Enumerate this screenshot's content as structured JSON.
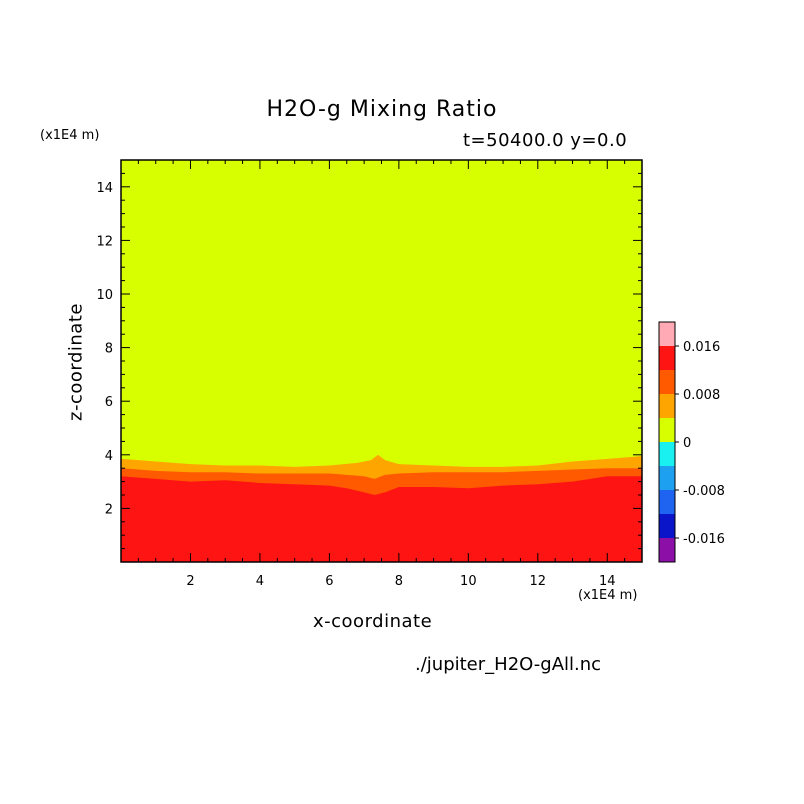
{
  "chart_data": {
    "type": "heatmap",
    "title": "H2O-g Mixing Ratio",
    "subtitle": "t=50400.0 y=0.0",
    "xlabel": "x-coordinate",
    "ylabel": "z-coordinate",
    "x_unit": "(x1E4 m)",
    "y_unit": "(x1E4 m)",
    "source": "./jupiter_H2O-gAll.nc",
    "xlim": [
      0,
      15
    ],
    "ylim": [
      0,
      15
    ],
    "x_ticks": [
      2,
      4,
      6,
      8,
      10,
      12,
      14
    ],
    "y_ticks": [
      2,
      4,
      6,
      8,
      10,
      12,
      14
    ],
    "colorbar": {
      "levels": [
        -0.02,
        -0.016,
        -0.012,
        -0.008,
        -0.004,
        0,
        0.004,
        0.008,
        0.012,
        0.016,
        0.02
      ],
      "colors": [
        "#8c0fa8",
        "#0a14c8",
        "#1e64f0",
        "#1ea0f0",
        "#19f0f0",
        "#d7ff00",
        "#ffa500",
        "#ff5a00",
        "#ff1414",
        "#ffaab4"
      ],
      "tick_labels": [
        {
          "value": -0.016,
          "label": "-0.016"
        },
        {
          "value": -0.008,
          "label": "-0.008"
        },
        {
          "value": 0,
          "label": "0"
        },
        {
          "value": 0.008,
          "label": "0.008"
        },
        {
          "value": 0.016,
          "label": "0.016"
        }
      ]
    },
    "contour_bands": [
      {
        "color": "#ff1414",
        "note": "0.012 to 0.016",
        "x": [
          0,
          1,
          2,
          3,
          4,
          5,
          6,
          6.5,
          7,
          7.3,
          7.6,
          8,
          9,
          10,
          11,
          12,
          13,
          14,
          15
        ],
        "top": [
          3.2,
          3.1,
          3.0,
          3.05,
          2.95,
          2.9,
          2.85,
          2.75,
          2.6,
          2.5,
          2.6,
          2.8,
          2.8,
          2.75,
          2.85,
          2.9,
          3.0,
          3.2,
          3.2
        ]
      },
      {
        "color": "#ff5a00",
        "note": "0.008 to 0.012",
        "x": [
          0,
          1,
          2,
          3,
          4,
          5,
          6,
          6.5,
          7,
          7.3,
          7.6,
          8,
          9,
          10,
          11,
          12,
          13,
          14,
          15
        ],
        "top": [
          3.5,
          3.4,
          3.35,
          3.35,
          3.3,
          3.3,
          3.3,
          3.25,
          3.2,
          3.1,
          3.25,
          3.3,
          3.35,
          3.35,
          3.35,
          3.4,
          3.45,
          3.5,
          3.5
        ]
      },
      {
        "color": "#ffa500",
        "note": "0.004 to 0.008",
        "x": [
          0,
          1,
          2,
          3,
          4,
          5,
          6,
          6.8,
          7.2,
          7.4,
          7.6,
          8,
          9,
          10,
          11,
          12,
          13,
          14,
          15
        ],
        "top": [
          3.85,
          3.75,
          3.65,
          3.6,
          3.6,
          3.55,
          3.6,
          3.7,
          3.8,
          4.0,
          3.8,
          3.65,
          3.6,
          3.55,
          3.55,
          3.6,
          3.75,
          3.85,
          3.95
        ]
      }
    ],
    "background_color": "#d7ff00"
  }
}
